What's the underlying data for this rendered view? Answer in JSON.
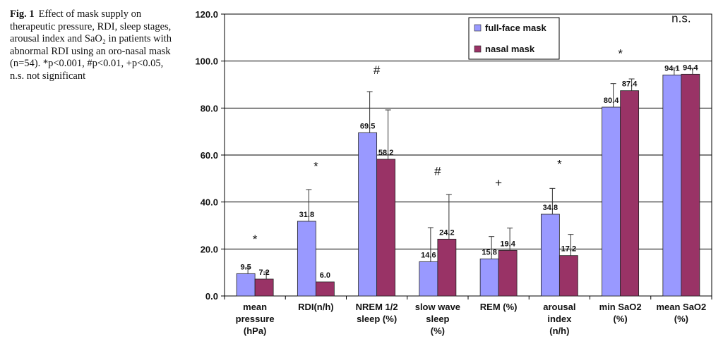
{
  "caption": {
    "fig_label": "Fig. 1",
    "text": "Effect of mask supply on therapeutic pressure, RDI, sleep stages, arousal index and SaO₂ in patients with abnormal RDI using an oro-nasal mask (n=54). *p<0.001, #p<0.01, +p<0.05, n.s. not significant"
  },
  "chart_data": {
    "type": "bar",
    "ylim": [
      0,
      120
    ],
    "yticks": [
      "0.0",
      "20.0",
      "40.0",
      "60.0",
      "80.0",
      "100.0",
      "120.0"
    ],
    "ytick_values": [
      0,
      20,
      40,
      60,
      80,
      100,
      120
    ],
    "grid": true,
    "legend_position": "top-right",
    "categories": [
      [
        "mean",
        "pressure",
        "(hPa)"
      ],
      [
        "RDI(n/h)"
      ],
      [
        "NREM 1/2",
        "sleep (%)"
      ],
      [
        "slow wave",
        "sleep",
        "(%)"
      ],
      [
        "REM (%)"
      ],
      [
        "arousal",
        "index",
        "(n/h)"
      ],
      [
        "min SaO2",
        "(%)"
      ],
      [
        "mean SaO2",
        "(%)"
      ]
    ],
    "series": [
      {
        "name": "full-face mask",
        "color": "#9999ff",
        "values": [
          9.5,
          31.8,
          69.5,
          14.6,
          15.8,
          34.8,
          80.4,
          94.1
        ],
        "labels": [
          "9.5",
          "31.8",
          "69.5",
          "14.6",
          "15.8",
          "34.8",
          "80.4",
          "94.1"
        ],
        "error": [
          2.5,
          13.5,
          17.5,
          14.5,
          9.5,
          11.0,
          10.0,
          3.0
        ]
      },
      {
        "name": "nasal mask",
        "color": "#993366",
        "values": [
          7.2,
          6.0,
          58.2,
          24.2,
          19.4,
          17.2,
          87.4,
          94.4
        ],
        "labels": [
          "7.2",
          "6.0",
          "58.2",
          "24.2",
          "19.4",
          "17.2",
          "87.4",
          "94.4"
        ],
        "error": [
          3.0,
          0,
          21.0,
          19.0,
          9.5,
          9.0,
          5.0,
          2.5
        ]
      }
    ],
    "significance": [
      "*",
      "*",
      "#",
      "#",
      "+",
      "*",
      "*",
      "n.s."
    ],
    "significance_values": [
      22.5,
      53.5,
      94.5,
      51.5,
      46.5,
      54.5,
      101.5,
      116.5
    ]
  }
}
